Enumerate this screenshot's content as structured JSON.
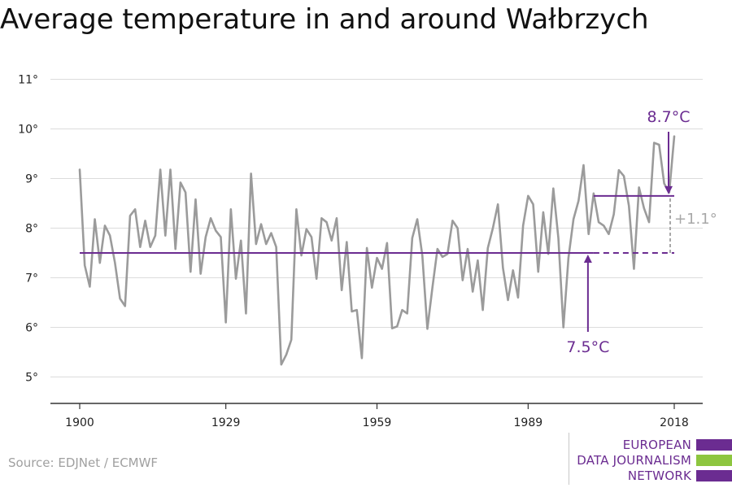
{
  "chart_data": {
    "type": "line",
    "title": "Average temperature in and around Wałbrzych",
    "xlabel": "",
    "ylabel": "",
    "xlim": [
      1900,
      2018
    ],
    "ylim": [
      4.5,
      11.5
    ],
    "x_ticks": [
      {
        "value": 1900,
        "label": "1900"
      },
      {
        "value": 1929,
        "label": "1929"
      },
      {
        "value": 1959,
        "label": "1959"
      },
      {
        "value": 1989,
        "label": "1989"
      },
      {
        "value": 2018,
        "label": "2018"
      }
    ],
    "y_ticks": [
      {
        "value": 5,
        "label": "5°"
      },
      {
        "value": 6,
        "label": "6°"
      },
      {
        "value": 7,
        "label": "7°"
      },
      {
        "value": 8,
        "label": "8°"
      },
      {
        "value": 9,
        "label": "9°"
      },
      {
        "value": 10,
        "label": "10°"
      },
      {
        "value": 11,
        "label": "11°"
      }
    ],
    "grid": true,
    "x": [
      1900,
      1901,
      1902,
      1903,
      1904,
      1905,
      1906,
      1907,
      1908,
      1909,
      1910,
      1911,
      1912,
      1913,
      1914,
      1915,
      1916,
      1917,
      1918,
      1919,
      1920,
      1921,
      1922,
      1923,
      1924,
      1925,
      1926,
      1927,
      1928,
      1929,
      1930,
      1931,
      1932,
      1933,
      1934,
      1935,
      1936,
      1937,
      1938,
      1939,
      1940,
      1941,
      1942,
      1943,
      1944,
      1945,
      1946,
      1947,
      1948,
      1949,
      1950,
      1951,
      1952,
      1953,
      1954,
      1955,
      1956,
      1957,
      1958,
      1959,
      1960,
      1961,
      1962,
      1963,
      1964,
      1965,
      1966,
      1967,
      1968,
      1969,
      1970,
      1971,
      1972,
      1973,
      1974,
      1975,
      1976,
      1977,
      1978,
      1979,
      1980,
      1981,
      1982,
      1983,
      1984,
      1985,
      1986,
      1987,
      1988,
      1989,
      1990,
      1991,
      1992,
      1993,
      1994,
      1995,
      1996,
      1997,
      1998,
      1999,
      2000,
      2001,
      2002,
      2003,
      2004,
      2005,
      2006,
      2007,
      2008,
      2009,
      2010,
      2011,
      2012,
      2013,
      2014,
      2015,
      2016,
      2017,
      2018
    ],
    "series": [
      {
        "values": [
          9.18,
          7.25,
          6.82,
          8.18,
          7.3,
          8.05,
          7.85,
          7.3,
          6.58,
          6.43,
          8.25,
          8.38,
          7.62,
          8.15,
          7.62,
          7.85,
          9.18,
          7.85,
          9.18,
          7.58,
          8.92,
          8.72,
          7.12,
          8.58,
          7.08,
          7.82,
          8.2,
          7.95,
          7.82,
          6.1,
          8.38,
          6.98,
          7.75,
          6.28,
          9.1,
          7.68,
          8.08,
          7.68,
          7.9,
          7.62,
          5.25,
          5.45,
          5.75,
          8.38,
          7.45,
          7.98,
          7.82,
          6.98,
          8.2,
          8.12,
          7.75,
          8.2,
          6.75,
          7.72,
          6.32,
          6.35,
          5.38,
          7.6,
          6.8,
          7.4,
          7.18,
          7.7,
          5.98,
          6.02,
          6.35,
          6.28,
          7.8,
          8.18,
          7.45,
          5.97,
          6.8,
          7.58,
          7.42,
          7.48,
          8.15,
          8.0,
          6.95,
          7.58,
          6.72,
          7.35,
          6.35,
          7.6,
          8.0,
          8.48,
          7.2,
          6.55,
          7.15,
          6.6,
          8.05,
          8.65,
          8.48,
          7.12,
          8.32,
          7.48,
          8.8,
          7.8,
          6.0,
          7.4,
          8.18,
          8.55,
          9.27,
          7.88,
          8.7,
          8.12,
          8.05,
          7.88,
          8.28,
          9.17,
          9.05,
          8.45,
          7.18,
          8.82,
          8.4,
          8.12,
          9.72,
          9.68,
          8.9,
          8.72,
          9.85
        ],
        "color": "#9b9b9b"
      }
    ],
    "reference_lines": [
      {
        "from": 1900,
        "to": 2002,
        "value": 7.5,
        "style": "solid",
        "color": "#6b2c91"
      },
      {
        "from": 2002,
        "to": 2018,
        "value": 7.5,
        "style": "dashed",
        "color": "#6b2c91"
      },
      {
        "from": 2002,
        "to": 2018,
        "value": 8.65,
        "style": "solid",
        "color": "#6b2c91"
      }
    ],
    "annotations": [
      {
        "text": "7.5°C",
        "x": 2002,
        "y": 7.5,
        "color": "#6b2c91"
      },
      {
        "text": "8.7°C",
        "x": 2017.5,
        "y": 8.65,
        "color": "#6b2c91"
      },
      {
        "text": "+1.1°",
        "x": 2018,
        "y": 8.07,
        "color": "#a8a8a8"
      }
    ]
  },
  "source": "Source: EDJNet / ECMWF",
  "logo": {
    "lines": [
      "EUROPEAN",
      "DATA JOURNALISM",
      "NETWORK"
    ],
    "bar_colors": [
      "#6b2c91",
      "#8dc63f",
      "#6b2c91"
    ]
  }
}
